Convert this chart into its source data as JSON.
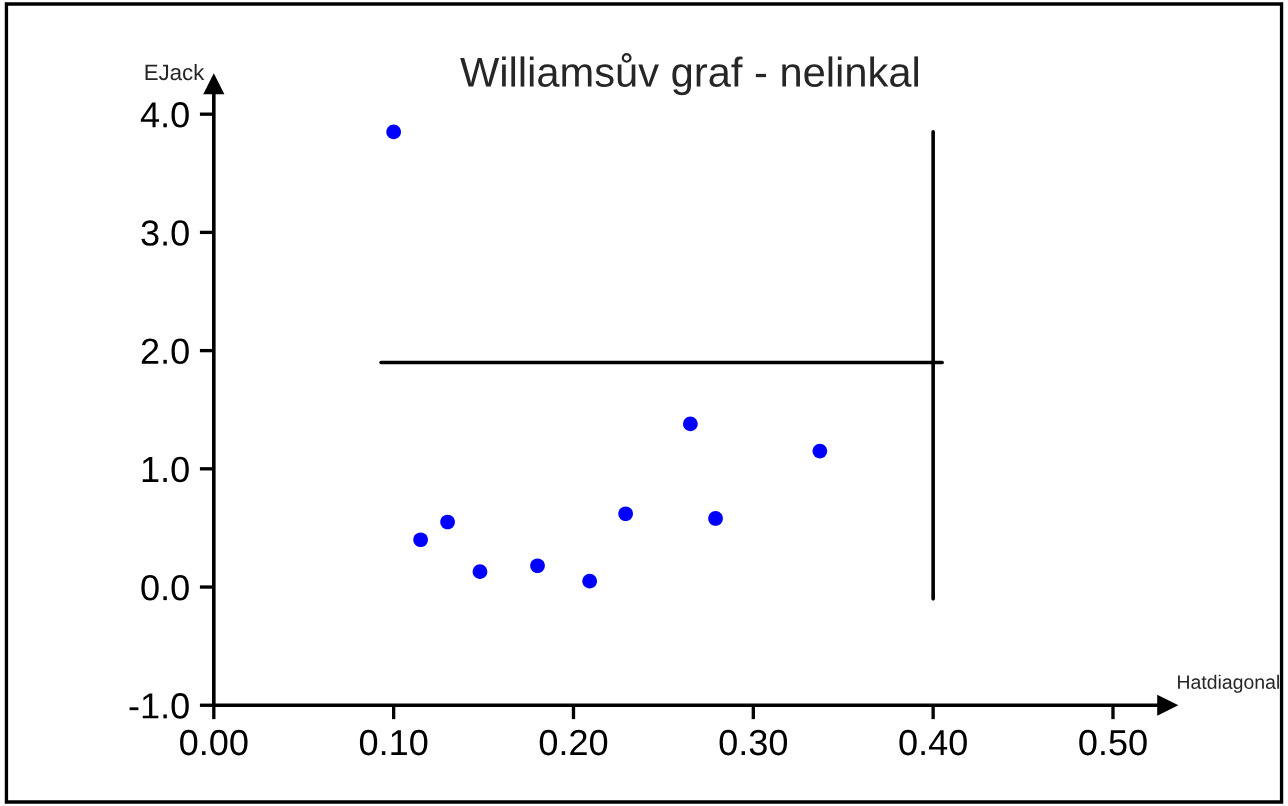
{
  "chart_data": {
    "type": "scatter",
    "title": "Williamsův graf - nelinkal",
    "xlabel": "Hatdiagonal",
    "ylabel": "EJack",
    "x": [
      0.1,
      0.115,
      0.13,
      0.148,
      0.18,
      0.209,
      0.229,
      0.265,
      0.279,
      0.337
    ],
    "series": [
      {
        "color": "#0000ff",
        "marker": "circle",
        "values": [
          3.85,
          0.4,
          0.55,
          0.13,
          0.18,
          0.05,
          0.62,
          1.38,
          0.58,
          1.15
        ]
      },
      {
        "type": "line",
        "color": "#000000",
        "x": [
          0.093,
          0.405
        ],
        "values": [
          1.9,
          1.9
        ]
      },
      {
        "type": "line",
        "color": "#000000",
        "x": [
          0.4,
          0.4
        ],
        "values": [
          -0.1,
          3.85
        ]
      }
    ],
    "xlim": [
      0,
      0.53
    ],
    "ylim": [
      -1.0,
      4.25
    ],
    "xticks": [
      {
        "value": 0,
        "label": "0.00"
      },
      {
        "value": 0.1,
        "label": "0.10"
      },
      {
        "value": 0.2,
        "label": "0.20"
      },
      {
        "value": 0.3,
        "label": "0.30"
      },
      {
        "value": 0.4,
        "label": "0.40"
      },
      {
        "value": 0.5,
        "label": "0.50"
      }
    ],
    "yticks": [
      {
        "value": -1,
        "label": "-1.0"
      },
      {
        "value": 0,
        "label": "0.0"
      },
      {
        "value": 1,
        "label": "1.0"
      },
      {
        "value": 2,
        "label": "2.0"
      },
      {
        "value": 3,
        "label": "3.0"
      },
      {
        "value": 4,
        "label": "4.0"
      }
    ],
    "grid": false,
    "legend": false
  }
}
